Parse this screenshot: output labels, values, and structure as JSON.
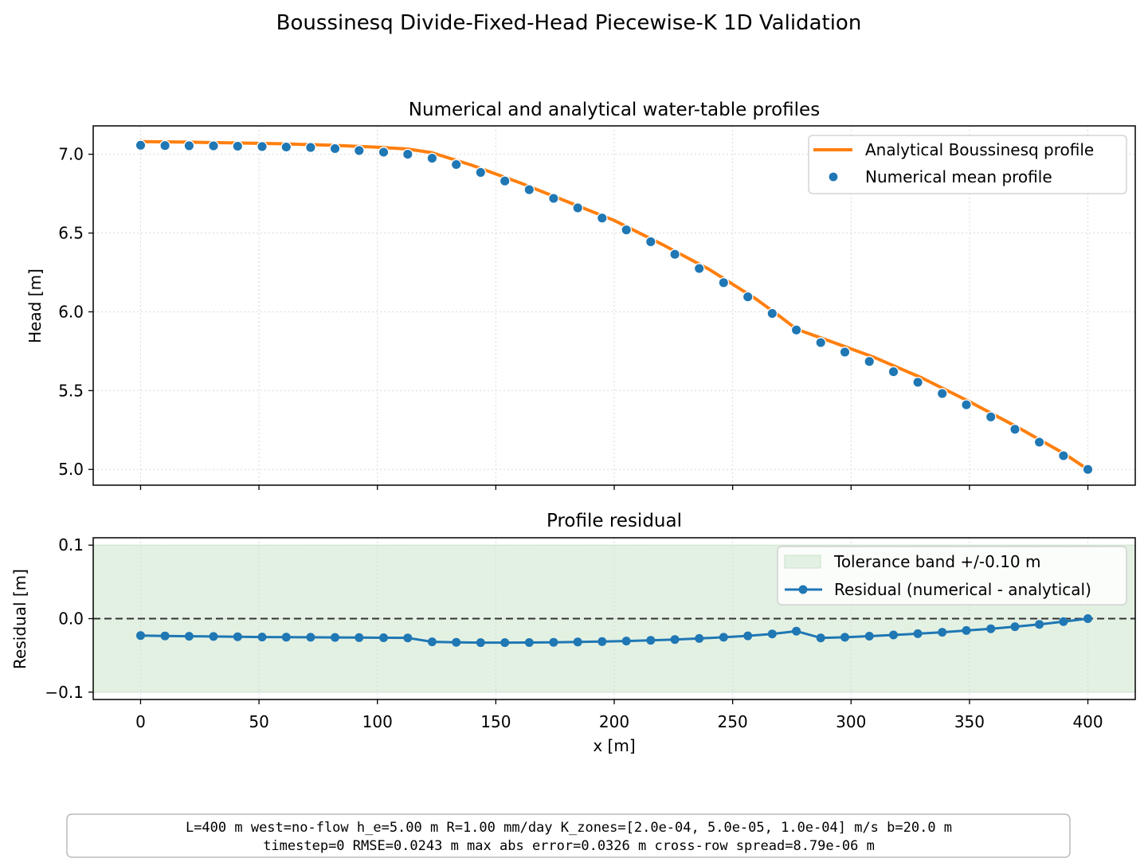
{
  "figure_title": "Boussinesq Divide-Fixed-Head Piecewise-K 1D Validation",
  "footer": {
    "line1": "L=400 m   west=no-flow   h_e=5.00 m   R=1.00 mm/day   K_zones=[2.0e-04, 5.0e-05, 1.0e-04] m/s   b=20.0 m",
    "line2": "timestep=0   RMSE=0.0243 m   max abs error=0.0326 m   cross-row spread=8.79e-06 m"
  },
  "colors": {
    "analytical": "#ff7f0e",
    "numerical": "#1f77b4",
    "band": "#e3f1e3",
    "band_edge": "#c8e4c8"
  },
  "chart_data": [
    {
      "type": "line",
      "title": "Numerical and analytical water-table profiles",
      "xlabel": "",
      "ylabel": "Head [m]",
      "xlim": [
        -20,
        420
      ],
      "ylim": [
        4.9,
        7.18
      ],
      "xticks": [
        0,
        50,
        100,
        150,
        200,
        250,
        300,
        350,
        400
      ],
      "yticks": [
        5.0,
        5.5,
        6.0,
        6.5,
        7.0
      ],
      "ytick_labels": [
        "5.0",
        "5.5",
        "6.0",
        "6.5",
        "7.0"
      ],
      "grid": true,
      "legend_position": "top-right",
      "series": [
        {
          "name": "Analytical Boussinesq profile",
          "kind": "line",
          "x": [
            0,
            20,
            40,
            60,
            80,
            100,
            113,
            123,
            140,
            160,
            180,
            200,
            220,
            240,
            260,
            270,
            277,
            290,
            310,
            330,
            350,
            370,
            390,
            400
          ],
          "y": [
            7.08,
            7.077,
            7.072,
            7.066,
            7.057,
            7.045,
            7.033,
            7.01,
            6.93,
            6.82,
            6.7,
            6.58,
            6.43,
            6.27,
            6.08,
            5.97,
            5.89,
            5.82,
            5.71,
            5.58,
            5.43,
            5.27,
            5.1,
            5.0
          ]
        },
        {
          "name": "Numerical mean profile",
          "kind": "scatter",
          "x": [
            0,
            10.3,
            20.5,
            30.8,
            41.0,
            51.3,
            61.5,
            71.8,
            82.1,
            92.3,
            102.6,
            112.8,
            123.1,
            133.3,
            143.6,
            153.8,
            164.1,
            174.4,
            184.6,
            194.9,
            205.1,
            215.4,
            225.6,
            235.9,
            246.2,
            256.4,
            266.7,
            276.9,
            287.2,
            297.4,
            307.7,
            317.9,
            328.2,
            338.5,
            348.7,
            359.0,
            369.2,
            379.5,
            389.7,
            400.0
          ],
          "y": [
            7.057,
            7.055,
            7.054,
            7.053,
            7.051,
            7.049,
            7.046,
            7.043,
            7.036,
            7.024,
            7.013,
            7.0,
            6.975,
            6.935,
            6.885,
            6.83,
            6.775,
            6.72,
            6.66,
            6.595,
            6.52,
            6.445,
            6.365,
            6.275,
            6.185,
            6.095,
            5.99,
            5.885,
            5.805,
            5.745,
            5.685,
            5.62,
            5.553,
            5.482,
            5.41,
            5.333,
            5.255,
            5.173,
            5.087,
            5.0
          ]
        }
      ]
    },
    {
      "type": "line",
      "title": "Profile residual",
      "xlabel": "x [m]",
      "ylabel": "Residual [m]",
      "xlim": [
        -20,
        420
      ],
      "ylim": [
        -0.11,
        0.11
      ],
      "xticks": [
        0,
        50,
        100,
        150,
        200,
        250,
        300,
        350,
        400
      ],
      "xtick_labels": [
        "0",
        "50",
        "100",
        "150",
        "200",
        "250",
        "300",
        "350",
        "400"
      ],
      "yticks": [
        -0.1,
        0.0,
        0.1
      ],
      "ytick_labels": [
        "−0.1",
        "0.0",
        "0.1"
      ],
      "grid": true,
      "legend_position": "top-right",
      "reference_line": 0.0,
      "band": {
        "name": "Tolerance band +/-0.10 m",
        "low": -0.1,
        "high": 0.1
      },
      "series": [
        {
          "name": "Residual (numerical - analytical)",
          "kind": "line+markers",
          "x": [
            0,
            10.3,
            20.5,
            30.8,
            41.0,
            51.3,
            61.5,
            71.8,
            82.1,
            92.3,
            102.6,
            112.8,
            123.1,
            133.3,
            143.6,
            153.8,
            164.1,
            174.4,
            184.6,
            194.9,
            205.1,
            215.4,
            225.6,
            235.9,
            246.2,
            256.4,
            266.7,
            276.9,
            287.2,
            297.4,
            307.7,
            317.9,
            328.2,
            338.5,
            348.7,
            359.0,
            369.2,
            379.5,
            389.7,
            400.0
          ],
          "y": [
            -0.023,
            -0.0235,
            -0.024,
            -0.0243,
            -0.0246,
            -0.025,
            -0.0252,
            -0.0254,
            -0.0256,
            -0.0258,
            -0.026,
            -0.0262,
            -0.0315,
            -0.0322,
            -0.0326,
            -0.0326,
            -0.0325,
            -0.0322,
            -0.0318,
            -0.0312,
            -0.0304,
            -0.0295,
            -0.0284,
            -0.027,
            -0.0254,
            -0.0234,
            -0.0208,
            -0.017,
            -0.0262,
            -0.0254,
            -0.0238,
            -0.0222,
            -0.0205,
            -0.0185,
            -0.0162,
            -0.0138,
            -0.011,
            -0.0078,
            -0.004,
            0.0
          ]
        }
      ]
    }
  ]
}
